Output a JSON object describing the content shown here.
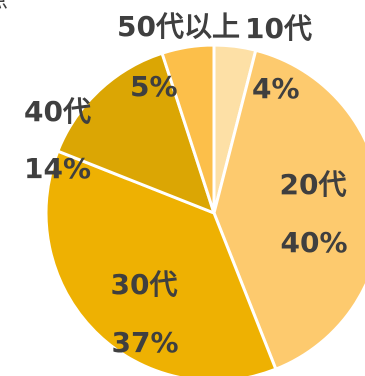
{
  "chart_data": {
    "type": "pie",
    "title": "",
    "title_fragment": "点",
    "slices": [
      {
        "label": "10代",
        "value": 4,
        "pct_label": "4%",
        "color": "#fde0a6"
      },
      {
        "label": "20代",
        "value": 40,
        "pct_label": "40%",
        "color": "#fdca6e"
      },
      {
        "label": "30代",
        "value": 37,
        "pct_label": "37%",
        "color": "#eeb102"
      },
      {
        "label": "40代",
        "value": 14,
        "pct_label": "14%",
        "color": "#dba604"
      },
      {
        "label": "50代以上",
        "value": 5,
        "pct_label": "5%",
        "color": "#fcbf4a"
      }
    ],
    "start_angle_deg": 0,
    "direction": "clockwise",
    "slice_border_color": "#ffffff",
    "label_color": "#3f3f3f"
  }
}
